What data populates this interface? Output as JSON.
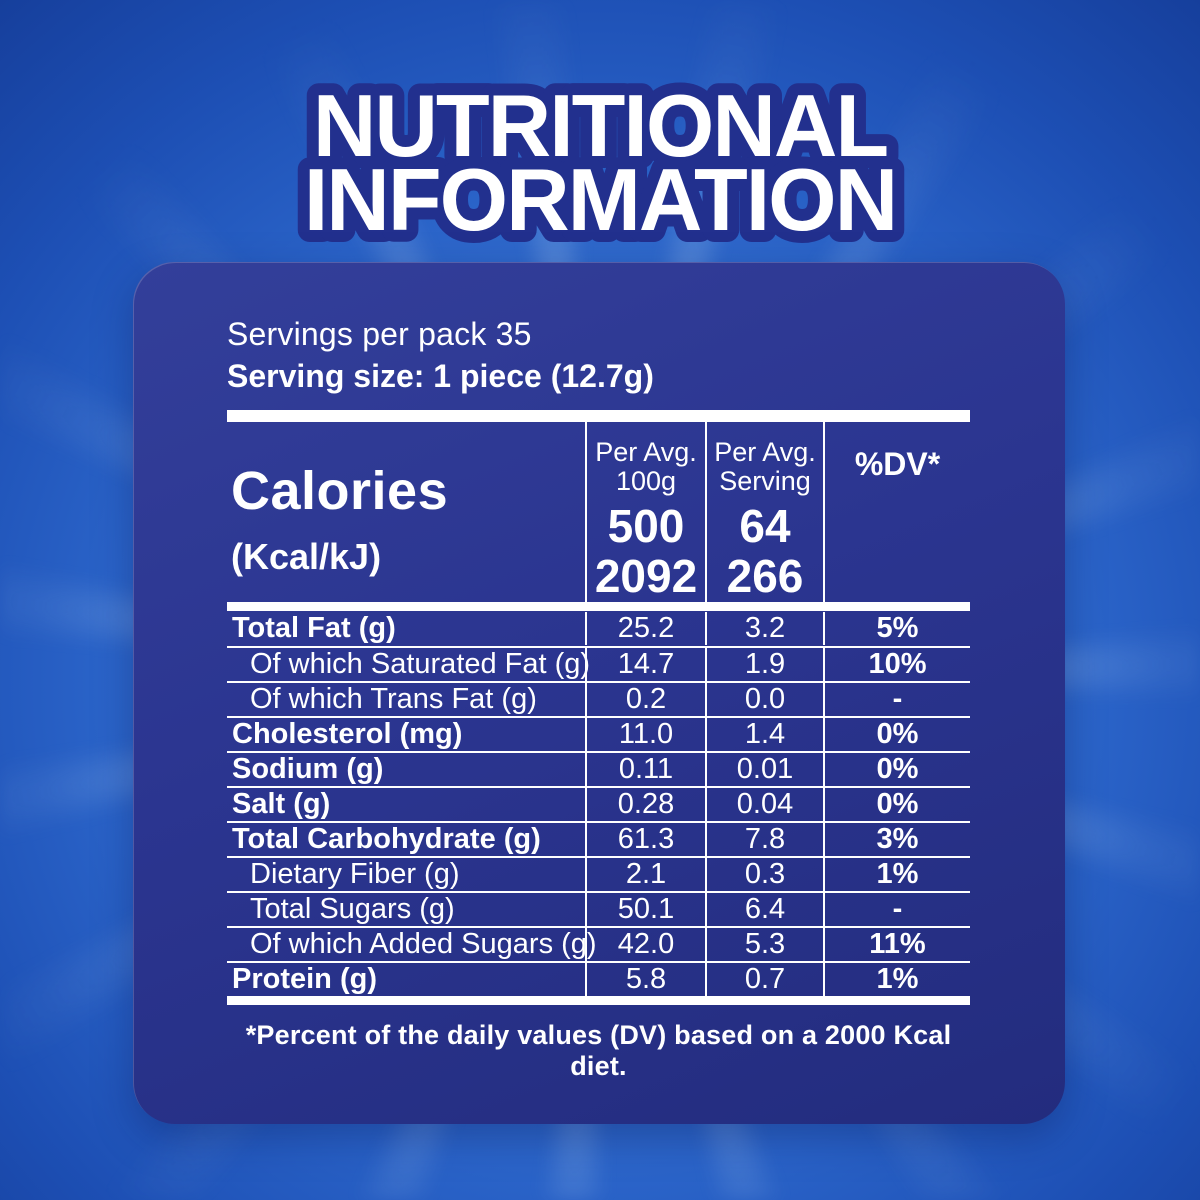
{
  "title": {
    "line1": "NUTRITIONAL",
    "line2": "INFORMATION"
  },
  "serving_info": {
    "servings_per_pack": "Servings per pack 35",
    "serving_size": "Serving size: 1 piece (12.7g)"
  },
  "table": {
    "header": {
      "calories_label": "Calories",
      "calories_unit": "(Kcal/kJ)",
      "col_per_100g": {
        "line1": "Per Avg.",
        "line2": "100g",
        "kcal": "500",
        "kj": "2092"
      },
      "col_per_serving": {
        "line1": "Per Avg.",
        "line2": "Serving",
        "kcal": "64",
        "kj": "266"
      },
      "col_dv": "%DV*"
    },
    "rows": [
      {
        "label": "Total Fat (g)",
        "per_100g": "25.2",
        "per_serving": "3.2",
        "dv": "5%"
      },
      {
        "label": "Of which Saturated Fat (g)",
        "per_100g": "14.7",
        "per_serving": "1.9",
        "dv": "10%"
      },
      {
        "label": "Of which Trans Fat (g)",
        "per_100g": "0.2",
        "per_serving": "0.0",
        "dv": "-"
      },
      {
        "label": "Cholesterol (mg)",
        "per_100g": "11.0",
        "per_serving": "1.4",
        "dv": "0%"
      },
      {
        "label": "Sodium (g)",
        "per_100g": "0.11",
        "per_serving": "0.01",
        "dv": "0%"
      },
      {
        "label": "Salt (g)",
        "per_100g": "0.28",
        "per_serving": "0.04",
        "dv": "0%"
      },
      {
        "label": "Total Carbohydrate (g)",
        "per_100g": "61.3",
        "per_serving": "7.8",
        "dv": "3%"
      },
      {
        "label": "Dietary Fiber (g)",
        "per_100g": "2.1",
        "per_serving": "0.3",
        "dv": "1%"
      },
      {
        "label": "Total Sugars (g)",
        "per_100g": "50.1",
        "per_serving": "6.4",
        "dv": "-"
      },
      {
        "label": "Of which Added Sugars (g)",
        "per_100g": "42.0",
        "per_serving": "5.3",
        "dv": "11%"
      },
      {
        "label": "Protein (g)",
        "per_100g": "5.8",
        "per_serving": "0.7",
        "dv": "1%"
      }
    ]
  },
  "footnote": "*Percent of the daily values (DV) based on a 2000 Kcal diet.",
  "colors": {
    "panel_navy": "#2b3590",
    "title_outline": "#22308e",
    "text_white": "#ffffff",
    "background_blue": "#2a63c8",
    "ray_light_blue": "#c3def8"
  }
}
